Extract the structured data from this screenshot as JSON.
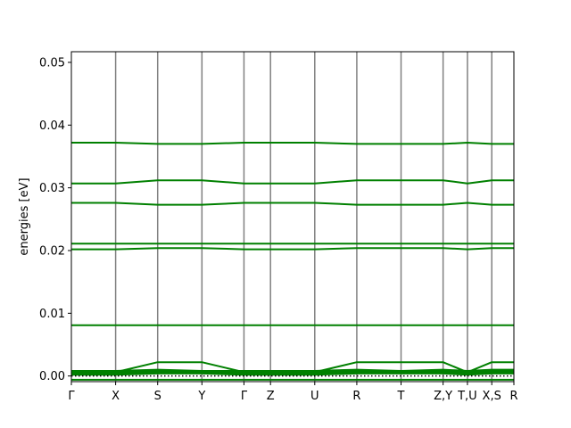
{
  "chart_data": {
    "type": "line",
    "title": "",
    "xlabel": "",
    "ylabel": "energies [eV]",
    "ylim": [
      -0.0009,
      0.0517
    ],
    "yticks": [
      0.0,
      0.01,
      0.02,
      0.03,
      0.04,
      0.05
    ],
    "ytick_labels": [
      "0.00",
      "0.01",
      "0.02",
      "0.03",
      "0.04",
      "0.05"
    ],
    "xlim": [
      0,
      10
    ],
    "kpoints": [
      {
        "label": "Γ",
        "x": 0.0
      },
      {
        "label": "X",
        "x": 1.0
      },
      {
        "label": "S",
        "x": 1.95
      },
      {
        "label": "Y",
        "x": 2.95
      },
      {
        "label": "Γ",
        "x": 3.9
      },
      {
        "label": "Z",
        "x": 4.5
      },
      {
        "label": "U",
        "x": 5.5
      },
      {
        "label": "R",
        "x": 6.45
      },
      {
        "label": "T",
        "x": 7.45
      },
      {
        "label": "Z,Y",
        "x": 8.4
      },
      {
        "label": "T,U",
        "x": 8.95
      },
      {
        "label": "X,S",
        "x": 9.5
      },
      {
        "label": "R",
        "x": 10.0
      }
    ],
    "fermi_level": 0.0,
    "line_color": "#008000",
    "kline_color": "#808080",
    "series": [
      {
        "x": [
          0,
          1,
          1.95,
          2.95,
          3.9,
          4.5,
          5.5,
          6.45,
          7.45,
          8.4,
          8.95,
          9.5,
          10
        ],
        "values": [
          -0.0006,
          -0.0006,
          -0.0006,
          -0.0006,
          -0.0006,
          -0.0006,
          -0.0006,
          -0.0006,
          -0.0006,
          -0.0006,
          -0.0006,
          -0.0006,
          -0.0006
        ]
      },
      {
        "x": [
          0,
          1,
          1.95,
          2.95,
          3.9,
          4.5,
          5.5,
          6.45,
          7.45,
          8.4,
          8.95,
          9.5,
          10
        ],
        "values": [
          0.0002,
          0.0002,
          0.0004,
          0.0004,
          0.0002,
          0.0002,
          0.0002,
          0.0004,
          0.0004,
          0.0004,
          0.0002,
          0.0004,
          0.0004
        ]
      },
      {
        "x": [
          0,
          1,
          1.95,
          2.95,
          3.9,
          4.5,
          5.5,
          6.45,
          7.45,
          8.4,
          8.95,
          9.5,
          10
        ],
        "values": [
          0.0004,
          0.0004,
          0.0006,
          0.0006,
          0.0004,
          0.0004,
          0.0004,
          0.0006,
          0.0006,
          0.0006,
          0.0004,
          0.0006,
          0.0006
        ]
      },
      {
        "x": [
          0,
          1,
          1.95,
          2.95,
          3.9,
          4.5,
          5.5,
          6.45,
          7.45,
          8.4,
          8.95,
          9.5,
          10
        ],
        "values": [
          0.0006,
          0.0006,
          0.0008,
          0.0008,
          0.0006,
          0.0006,
          0.0006,
          0.0008,
          0.0008,
          0.0008,
          0.0006,
          0.0008,
          0.0008
        ]
      },
      {
        "x": [
          0,
          1,
          1.95,
          2.95,
          3.9,
          4.5,
          5.5,
          6.45,
          7.45,
          8.4,
          8.95,
          9.5,
          10
        ],
        "values": [
          0.0008,
          0.0008,
          0.001,
          0.0008,
          0.0008,
          0.0008,
          0.0008,
          0.001,
          0.0008,
          0.001,
          0.0008,
          0.001,
          0.001
        ]
      },
      {
        "x": [
          0,
          1,
          1.95,
          2.95,
          3.9,
          4.5,
          5.5,
          6.45,
          7.45,
          8.4,
          8.95,
          9.5,
          10
        ],
        "values": [
          0.0006,
          0.0006,
          0.0022,
          0.0022,
          0.0006,
          0.0006,
          0.0006,
          0.0022,
          0.0022,
          0.0022,
          0.0006,
          0.0022,
          0.0022
        ]
      },
      {
        "x": [
          0,
          1,
          1.95,
          2.95,
          3.9,
          4.5,
          5.5,
          6.45,
          7.45,
          8.4,
          8.95,
          9.5,
          10
        ],
        "values": [
          0.0081,
          0.0081,
          0.0081,
          0.0081,
          0.0081,
          0.0081,
          0.0081,
          0.0081,
          0.0081,
          0.0081,
          0.0081,
          0.0081,
          0.0081
        ]
      },
      {
        "x": [
          0,
          1,
          1.95,
          2.95,
          3.9,
          4.5,
          5.5,
          6.45,
          7.45,
          8.4,
          8.95,
          9.5,
          10
        ],
        "values": [
          0.0202,
          0.0202,
          0.0204,
          0.0204,
          0.0202,
          0.0202,
          0.0202,
          0.0204,
          0.0204,
          0.0204,
          0.0202,
          0.0204,
          0.0204
        ]
      },
      {
        "x": [
          0,
          1,
          1.95,
          2.95,
          3.9,
          4.5,
          5.5,
          6.45,
          7.45,
          8.4,
          8.95,
          9.5,
          10
        ],
        "values": [
          0.0211,
          0.0211,
          0.0211,
          0.0211,
          0.0211,
          0.0211,
          0.0211,
          0.0211,
          0.0211,
          0.0211,
          0.0211,
          0.0211,
          0.0211
        ]
      },
      {
        "x": [
          0,
          1,
          1.95,
          2.95,
          3.9,
          4.5,
          5.5,
          6.45,
          7.45,
          8.4,
          8.95,
          9.5,
          10
        ],
        "values": [
          0.0276,
          0.0276,
          0.0273,
          0.0273,
          0.0276,
          0.0276,
          0.0276,
          0.0273,
          0.0273,
          0.0273,
          0.0276,
          0.0273,
          0.0273
        ]
      },
      {
        "x": [
          0,
          1,
          1.95,
          2.95,
          3.9,
          4.5,
          5.5,
          6.45,
          7.45,
          8.4,
          8.95,
          9.5,
          10
        ],
        "values": [
          0.0307,
          0.0307,
          0.0312,
          0.0312,
          0.0307,
          0.0307,
          0.0307,
          0.0312,
          0.0312,
          0.0312,
          0.0307,
          0.0312,
          0.0312
        ]
      },
      {
        "x": [
          0,
          1,
          1.95,
          2.95,
          3.9,
          4.5,
          5.5,
          6.45,
          7.45,
          8.4,
          8.95,
          9.5,
          10
        ],
        "values": [
          0.0372,
          0.0372,
          0.037,
          0.037,
          0.0372,
          0.0372,
          0.0372,
          0.037,
          0.037,
          0.037,
          0.0372,
          0.037,
          0.037
        ]
      }
    ]
  }
}
